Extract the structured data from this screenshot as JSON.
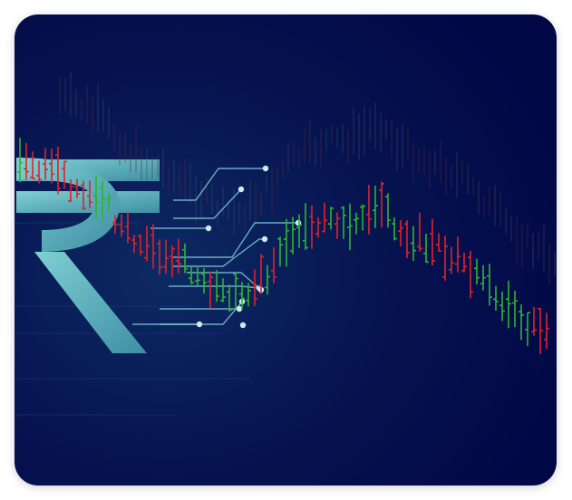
{
  "image": {
    "subject": "rupee-symbol-with-stock-chart",
    "colors": {
      "background_dark": "#020746",
      "background_light": "#0d2a63",
      "rupee": "#5fb7bd",
      "rising": "#2fb52f",
      "falling": "#e0222a",
      "circuit": "#7fc4d4"
    }
  },
  "chart_data": {
    "type": "ohlc",
    "title": "",
    "xlabel": "",
    "ylabel": ""
  }
}
